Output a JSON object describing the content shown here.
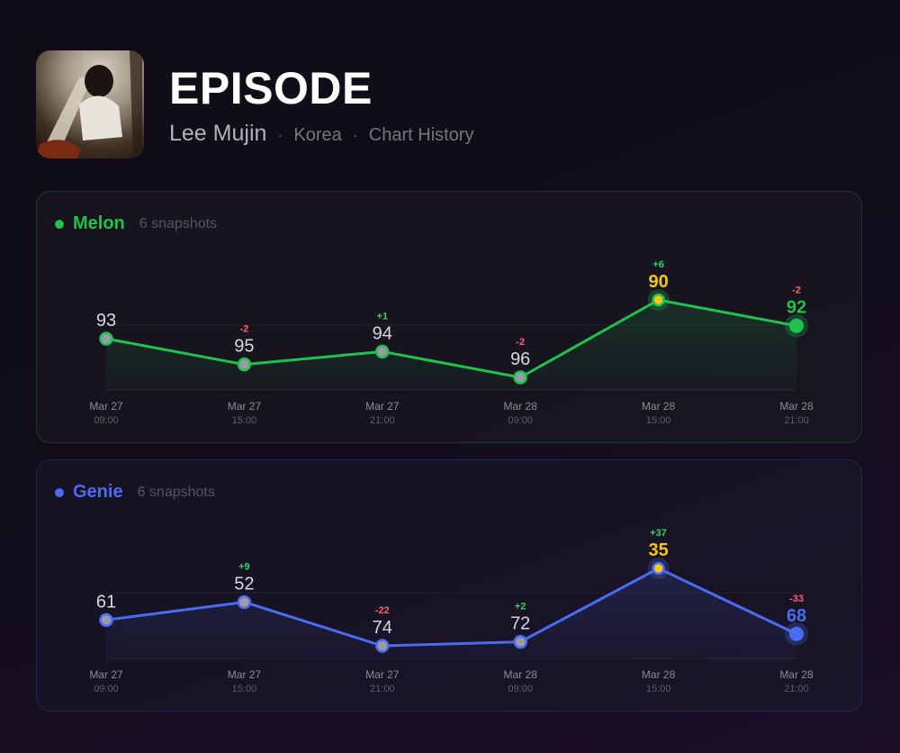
{
  "header": {
    "title": "EPISODE",
    "artist": "Lee Mujin",
    "country": "Korea",
    "page_label": "Chart History",
    "separator": "·"
  },
  "colors": {
    "melon": "#1ec24c",
    "genie": "#4a6cf0",
    "highlight": "#f5c518",
    "up": "#2fd36a",
    "down": "#ff5f6d"
  },
  "chart_data": [
    {
      "type": "line",
      "title": "Melon",
      "subtitle": "6 snapshots",
      "x": [
        {
          "date": "Mar 27",
          "time": "09:00"
        },
        {
          "date": "Mar 27",
          "time": "15:00"
        },
        {
          "date": "Mar 27",
          "time": "21:00"
        },
        {
          "date": "Mar 28",
          "time": "09:00"
        },
        {
          "date": "Mar 28",
          "time": "15:00"
        },
        {
          "date": "Mar 28",
          "time": "21:00"
        }
      ],
      "series": [
        {
          "values": [
            93,
            95,
            94,
            96,
            90,
            92
          ]
        }
      ],
      "changes": [
        "",
        "-2",
        "+1",
        "-2",
        "+6",
        "-2"
      ],
      "best_index": 4,
      "y_axis": "rank, inverted (lower rank plotted higher)"
    },
    {
      "type": "line",
      "title": "Genie",
      "subtitle": "6 snapshots",
      "x": [
        {
          "date": "Mar 27",
          "time": "09:00"
        },
        {
          "date": "Mar 27",
          "time": "15:00"
        },
        {
          "date": "Mar 27",
          "time": "21:00"
        },
        {
          "date": "Mar 28",
          "time": "09:00"
        },
        {
          "date": "Mar 28",
          "time": "15:00"
        },
        {
          "date": "Mar 28",
          "time": "21:00"
        }
      ],
      "series": [
        {
          "values": [
            61,
            52,
            74,
            72,
            35,
            68
          ]
        }
      ],
      "changes": [
        "",
        "+9",
        "-22",
        "+2",
        "+37",
        "-33"
      ],
      "best_index": 4,
      "y_axis": "rank, inverted (lower rank plotted higher)"
    }
  ]
}
